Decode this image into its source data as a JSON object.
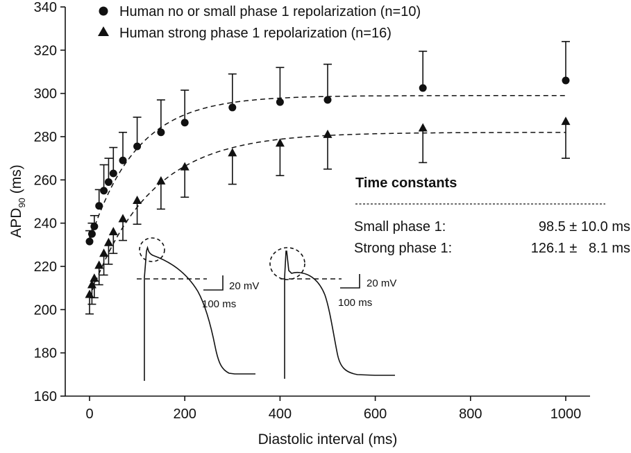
{
  "chart_data": {
    "type": "scatter",
    "xlabel": "Diastolic interval (ms)",
    "ylabel_main": "APD",
    "ylabel_sub": "90",
    "ylabel_unit": " (ms)",
    "xlim": [
      -20,
      1030
    ],
    "ylim": [
      160,
      340
    ],
    "xticks": [
      0,
      200,
      400,
      600,
      800,
      1000
    ],
    "yticks": [
      160,
      180,
      200,
      220,
      240,
      260,
      280,
      300,
      320,
      340
    ],
    "series": [
      {
        "name": "Human no or small phase 1 repolarization (n=10)",
        "marker": "circle",
        "x": [
          0,
          5,
          10,
          20,
          30,
          40,
          50,
          70,
          100,
          150,
          200,
          300,
          400,
          500,
          700,
          1000
        ],
        "y": [
          231.5,
          235,
          238.5,
          248,
          255,
          259,
          263,
          269,
          275.5,
          282,
          286.5,
          293.5,
          296,
          297,
          302.5,
          306
        ],
        "err": [
          5,
          5,
          5,
          7.5,
          12,
          11,
          12,
          13,
          13.5,
          15,
          15,
          15.5,
          16,
          16.5,
          17,
          18
        ],
        "fit": {
          "a": 231.5,
          "b": 299,
          "tau": 98.5
        }
      },
      {
        "name": "Human strong phase 1 repolarization (n=16)",
        "marker": "triangle",
        "x": [
          0,
          5,
          10,
          20,
          30,
          40,
          50,
          70,
          100,
          150,
          200,
          300,
          400,
          500,
          700,
          1000
        ],
        "y": [
          207,
          211.5,
          214.5,
          220.5,
          226,
          231,
          236,
          242,
          250.5,
          259.5,
          266,
          272.5,
          277,
          281,
          284,
          287
        ],
        "err": [
          9,
          9,
          9,
          9,
          10,
          10,
          10,
          10,
          11,
          13,
          14,
          14.5,
          15,
          16,
          16,
          17
        ],
        "fit": {
          "a": 205.5,
          "b": 282,
          "tau": 126.1
        }
      }
    ],
    "legend": {
      "position": "top-left",
      "entries": [
        "Human no or small phase 1 repolarization (n=10)",
        "Human strong phase 1 repolarization (n=16)"
      ]
    },
    "annotation": {
      "title": "Time constants",
      "rows": [
        {
          "label": "Small phase 1:",
          "value": "98.5 ± 10.0 ms"
        },
        {
          "label": "Strong phase 1:",
          "value": "126.1 ±   8.1 ms"
        }
      ]
    },
    "insets": [
      {
        "phase": "no or small phase 1",
        "scale_voltage": "20 mV",
        "scale_time": "100 ms"
      },
      {
        "phase": "strong phase 1",
        "scale_voltage": "20 mV",
        "scale_time": "100 ms"
      }
    ]
  }
}
